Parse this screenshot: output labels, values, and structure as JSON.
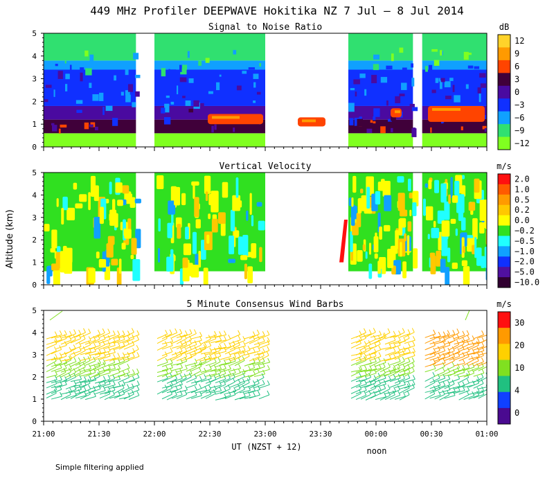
{
  "title": "449 MHz Profiler DEEPWAVE Hokitika NZ  7 Jul –  8 Jul 2014",
  "ylabel": "Altitude (km)",
  "xlabel": "UT  (NZST + 12)",
  "noon_label": "noon",
  "note": "Simple filtering applied",
  "chart_data": [
    {
      "type": "heatmap",
      "title": "Signal to Noise Ratio",
      "unit": "dB",
      "ylim": [
        0,
        5
      ],
      "yticks": [
        "0",
        "1",
        "2",
        "3",
        "4",
        "5"
      ],
      "x_time_ticks": [
        "21:00",
        "21:30",
        "22:00",
        "22:30",
        "23:00",
        "23:30",
        "00:00",
        "00:30",
        "01:00"
      ],
      "data_segments_ut": [
        [
          "21:00",
          "21:50"
        ],
        [
          "22:00",
          "23:00"
        ],
        [
          "23:45",
          "00:20"
        ],
        [
          "00:25",
          "01:00"
        ]
      ],
      "colorbar": {
        "labels": [
          "12",
          "9",
          "6",
          "3",
          "0",
          "−3",
          "−6",
          "−9",
          "−12"
        ],
        "colors": [
          "#ffd32a",
          "#ff9a00",
          "#ff4400",
          "#40003a",
          "#4a0aa0",
          "#1030ff",
          "#10a0ff",
          "#30e070",
          "#80ff20"
        ]
      },
      "layers_km": [
        {
          "from": 0.0,
          "to": 0.6,
          "dB": -12,
          "color": "#80ff20"
        },
        {
          "from": 0.6,
          "to": 1.2,
          "dB": 3,
          "color": "#40003a"
        },
        {
          "from": 1.2,
          "to": 1.8,
          "dB": 0,
          "color": "#4a0aa0"
        },
        {
          "from": 1.8,
          "to": 3.4,
          "dB": -3,
          "color": "#1030ff"
        },
        {
          "from": 3.4,
          "to": 3.8,
          "dB": -6,
          "color": "#10a0ff"
        },
        {
          "from": 3.8,
          "to": 5.0,
          "dB": -9,
          "color": "#30e070"
        }
      ]
    },
    {
      "type": "heatmap",
      "title": "Vertical Velocity",
      "unit": "m/s",
      "ylim": [
        0,
        5
      ],
      "yticks": [
        "0",
        "1",
        "2",
        "3",
        "4",
        "5"
      ],
      "colorbar": {
        "labels": [
          "2.0",
          "1.0",
          "0.5",
          "0.2",
          "0.0",
          "−0.2",
          "−0.5",
          "−1.0",
          "−2.0",
          "−5.0",
          "−10.0"
        ],
        "colors": [
          "#ff1010",
          "#ff5a00",
          "#ff9a00",
          "#ffc800",
          "#ffff00",
          "#30e020",
          "#20ffff",
          "#10a0ff",
          "#1030ff",
          "#5010a0",
          "#300030"
        ]
      },
      "dominant_values_ms": [
        0.0,
        -0.2,
        -0.5,
        0.2
      ]
    },
    {
      "type": "scatter",
      "title": "5 Minute Consensus Wind Barbs",
      "unit": "m/s",
      "ylim": [
        0,
        5
      ],
      "yticks": [
        "0",
        "1",
        "2",
        "3",
        "4",
        "5"
      ],
      "colorbar": {
        "labels": [
          "30",
          "20",
          "10",
          "4",
          "0"
        ],
        "colors": [
          "#ff1010",
          "#ff9a00",
          "#ffd000",
          "#80e020",
          "#20c080",
          "#1040ff",
          "#4a0a90"
        ]
      },
      "barb_altitudes_km": [
        1.0,
        1.25,
        1.5,
        1.75,
        2.0,
        2.25,
        2.5,
        2.75,
        3.0,
        3.25,
        3.5,
        3.75
      ]
    }
  ]
}
